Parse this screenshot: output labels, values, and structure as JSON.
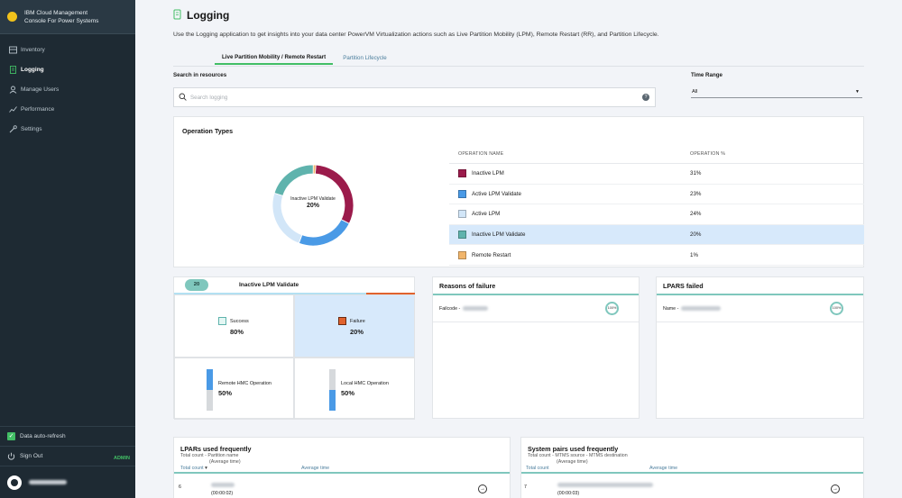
{
  "app": {
    "brand": "IBM Cloud Management Console For Power Systems",
    "brand_line1": "IBM Cloud Management",
    "brand_line2": "Console For Power Systems"
  },
  "sidebar": {
    "items": [
      {
        "label": "Inventory",
        "icon": "inventory-icon",
        "active": false
      },
      {
        "label": "Logging",
        "icon": "logging-icon",
        "active": true
      },
      {
        "label": "Manage Users",
        "icon": "users-icon",
        "active": false
      },
      {
        "label": "Performance",
        "icon": "performance-icon",
        "active": false
      },
      {
        "label": "Settings",
        "icon": "wrench-icon",
        "active": false
      }
    ],
    "auto_refresh": "Data auto-refresh",
    "sign_out": "Sign Out",
    "role": "ADMIN"
  },
  "page": {
    "title": "Logging",
    "description": "Use the Logging application to get insights into your data center PowerVM Virtualization actions such as Live Partition Mobility (LPM), Remote Restart (RR), and Partition Lifecycle.",
    "tabs": [
      {
        "label": "Live Partition Mobility / Remote Restart",
        "active": true
      },
      {
        "label": "Partition Lifecycle",
        "active": false
      }
    ]
  },
  "search": {
    "label": "Search in resources",
    "placeholder": "Search logging"
  },
  "time_range": {
    "label": "Time Range",
    "value": "All"
  },
  "operation_types": {
    "title": "Operation Types",
    "center_label": "Inactive LPM Validate",
    "center_value": "20%",
    "col_name": "OPERATION NAME",
    "col_pct": "OPERATION %",
    "rows": [
      {
        "name": "Inactive LPM",
        "pct": "31%",
        "color": "#9b1b4b",
        "value": 31
      },
      {
        "name": "Active LPM Validate",
        "pct": "23%",
        "color": "#4a9ae6",
        "value": 23
      },
      {
        "name": "Active LPM",
        "pct": "24%",
        "color": "#d2e6f8",
        "value": 24
      },
      {
        "name": "Inactive LPM Validate",
        "pct": "20%",
        "color": "#5fb3ad",
        "value": 20
      },
      {
        "name": "Remote Restart",
        "pct": "1%",
        "color": "#f1b56b",
        "value": 1
      }
    ],
    "selected_index": 3
  },
  "detail": {
    "count": "20",
    "title": "Inactive LPM Validate",
    "success_label": "Success",
    "success_value": "80%",
    "failure_label": "Failure",
    "failure_value": "20%",
    "remote_label": "Remote HMC Operation",
    "remote_value": "50%",
    "local_label": "Local HMC Operation",
    "local_value": "50%"
  },
  "reasons": {
    "title": "Reasons of failure",
    "row_label": "Failcode -",
    "ring": "100%"
  },
  "lpars_failed": {
    "title": "LPARS failed",
    "row_label": "Name -",
    "ring": "100%"
  },
  "lpars_used": {
    "title": "LPARs used frequently",
    "sub1": "Total count - Partition name",
    "sub2": "(Average time)",
    "col1": "Total count",
    "col2": "Average time",
    "row_count": "6",
    "row_time": "(00:00:02)"
  },
  "system_pairs": {
    "title": "System pairs used frequently",
    "sub1": "Total count - MTMS source - MTMS destination",
    "sub2": "(Average time)",
    "col1": "Total count",
    "col2": "Average time",
    "row_count": "7",
    "row_time": "(00:00:03)"
  }
}
